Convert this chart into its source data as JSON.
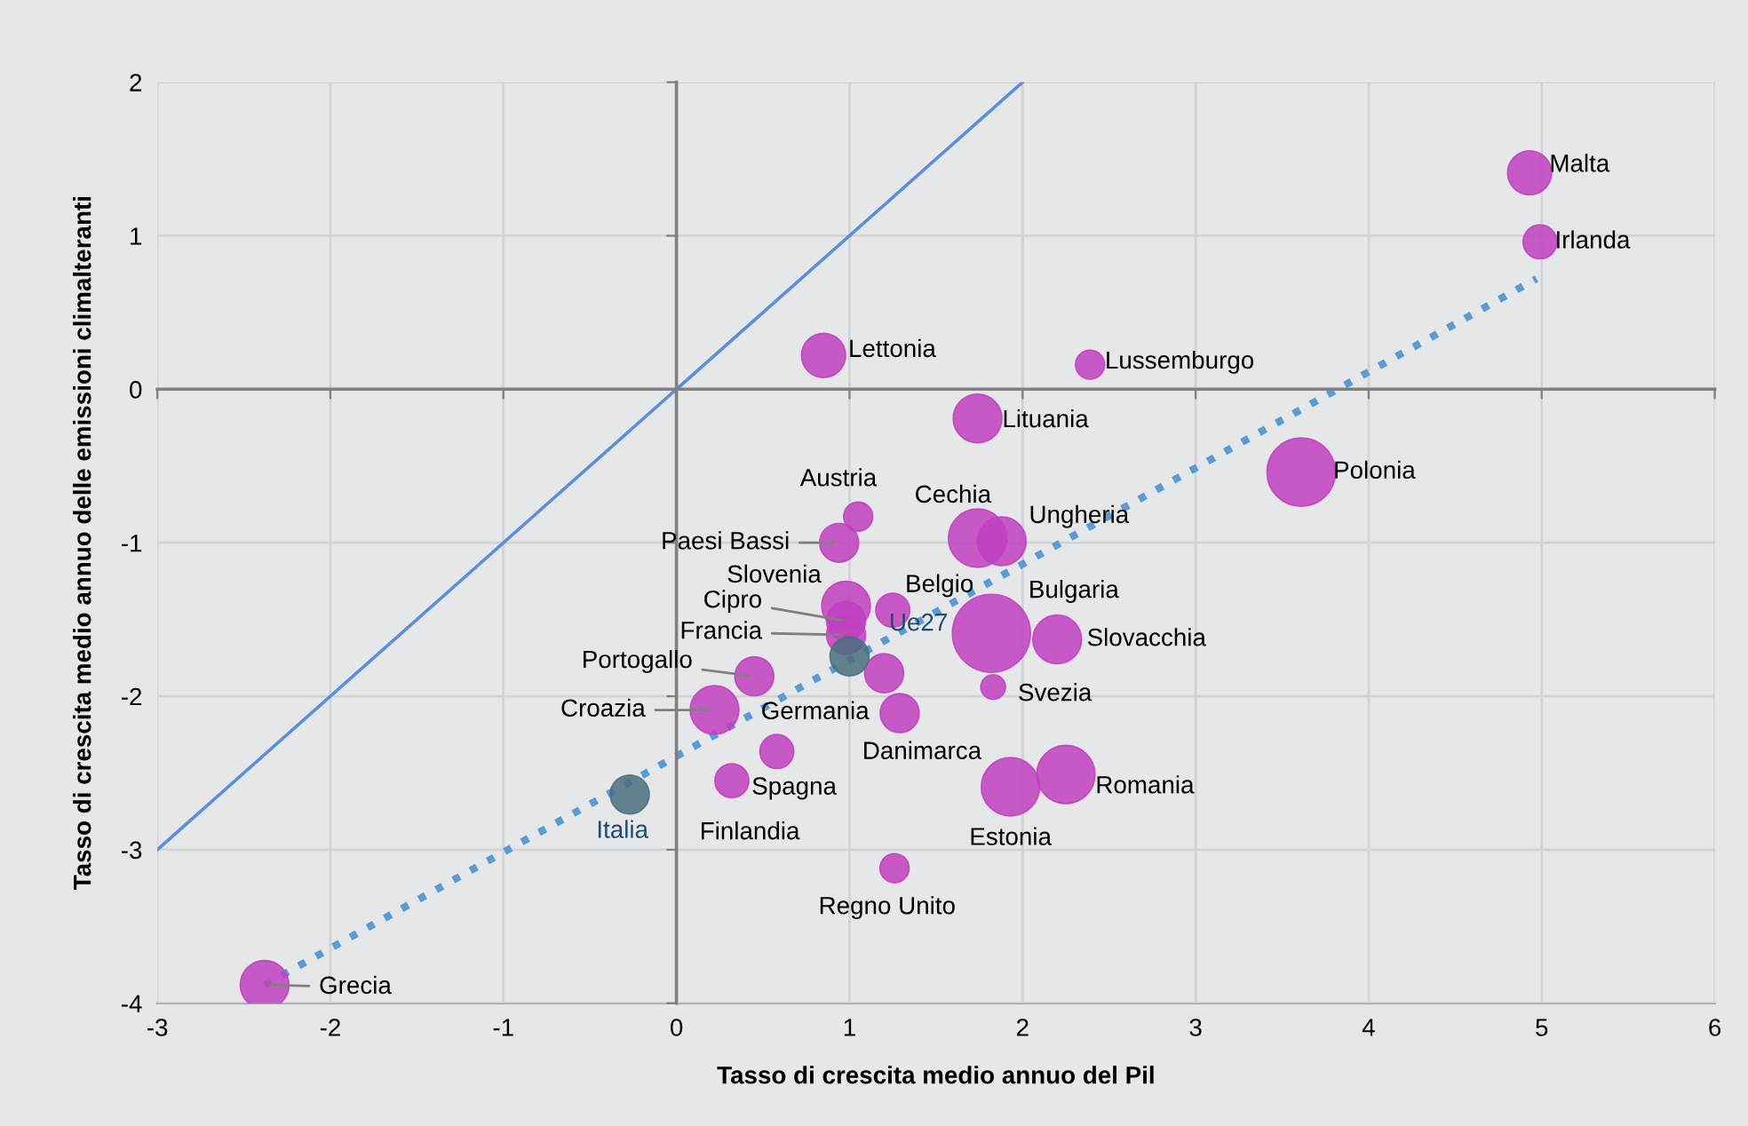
{
  "chart_data": {
    "type": "bubble",
    "xlabel": "Tasso di crescita medio annuo del Pil",
    "ylabel": "Tasso di crescita medio annuo delle emissioni climalteranti",
    "xlim": [
      -3,
      6
    ],
    "ylim": [
      -4,
      2
    ],
    "xticks": [
      -3,
      -2,
      -1,
      0,
      1,
      2,
      3,
      4,
      5,
      6
    ],
    "yticks": [
      -4,
      -3,
      -2,
      -1,
      0,
      1,
      2
    ],
    "grid": true,
    "legend": false,
    "series": [
      {
        "color": "#c040c0",
        "x": [
          4.93,
          4.99,
          0.85,
          2.39,
          1.74,
          3.61,
          1.05,
          0.94,
          1.74,
          1.88,
          0.98,
          0.98,
          0.98,
          1.25,
          1.82,
          2.2,
          0.45,
          0.22,
          1.2,
          1.29,
          1.83,
          0.32,
          0.58,
          1.93,
          2.25,
          1.26,
          -2.38
        ],
        "values": [
          1.41,
          0.96,
          0.22,
          0.16,
          -0.19,
          -0.54,
          -0.83,
          -1.0,
          -0.97,
          -0.99,
          -1.41,
          -1.51,
          -1.6,
          -1.44,
          -1.59,
          -1.63,
          -1.87,
          -2.09,
          -1.85,
          -2.11,
          -1.94,
          -2.55,
          -2.36,
          -2.59,
          -2.51,
          -3.12,
          -3.88
        ],
        "sizes": [
          0.32,
          0.19,
          0.32,
          0.14,
          0.39,
          0.77,
          0.14,
          0.25,
          0.56,
          0.39,
          0.39,
          0.25,
          0.25,
          0.19,
          1,
          0.39,
          0.25,
          0.39,
          0.25,
          0.25,
          0.1,
          0.19,
          0.19,
          0.56,
          0.56,
          0.14,
          0.39
        ]
      },
      {
        "color": "#4a6f7f",
        "x": [
          1.0,
          -0.27
        ],
        "values": [
          -1.74,
          -2.64
        ],
        "sizes": [
          0.25,
          0.25
        ]
      },
      {
        "type": "line",
        "color": "#5b8fd9",
        "line_style": "solid",
        "x": [
          -3,
          2
        ],
        "values": [
          -3,
          2
        ]
      },
      {
        "type": "line",
        "color": "#5b9bd5",
        "line_style": "dotted",
        "x": [
          -2.38,
          4.97
        ],
        "values": [
          -3.88,
          0.72
        ]
      }
    ],
    "annotations": [
      {
        "text": "Malta",
        "x": 4.93,
        "y": 1.41
      },
      {
        "text": "Irlanda",
        "x": 4.99,
        "y": 0.96
      },
      {
        "text": "Lettonia",
        "x": 0.85,
        "y": 0.22
      },
      {
        "text": "Lussemburgo",
        "x": 2.39,
        "y": 0.16
      },
      {
        "text": "Lituania",
        "x": 1.74,
        "y": -0.19
      },
      {
        "text": "Polonia",
        "x": 3.61,
        "y": -0.54
      },
      {
        "text": "Austria",
        "x": 1.05,
        "y": -0.83
      },
      {
        "text": "Paesi Bassi",
        "x": 0.94,
        "y": -1.0
      },
      {
        "text": "Cechia",
        "x": 1.74,
        "y": -0.97
      },
      {
        "text": "Ungheria",
        "x": 1.88,
        "y": -0.99
      },
      {
        "text": "Slovenia",
        "x": 0.98,
        "y": -1.41
      },
      {
        "text": "Cipro",
        "x": 0.98,
        "y": -1.51
      },
      {
        "text": "Francia",
        "x": 0.98,
        "y": -1.6
      },
      {
        "text": "Belgio",
        "x": 1.25,
        "y": -1.44
      },
      {
        "text": "Bulgaria",
        "x": 1.82,
        "y": -1.59
      },
      {
        "text": "Slovacchia",
        "x": 2.2,
        "y": -1.63
      },
      {
        "text": "Portogallo",
        "x": 0.45,
        "y": -1.87
      },
      {
        "text": "Croazia",
        "x": 0.22,
        "y": -2.09
      },
      {
        "text": "Germania",
        "x": 1.2,
        "y": -1.85
      },
      {
        "text": "Danimarca",
        "x": 1.29,
        "y": -2.11
      },
      {
        "text": "Svezia",
        "x": 1.83,
        "y": -1.94
      },
      {
        "text": "Spagna",
        "x": 0.32,
        "y": -2.55
      },
      {
        "text": "Finlandia",
        "x": 0.58,
        "y": -2.36
      },
      {
        "text": "Estonia",
        "x": 1.93,
        "y": -2.59
      },
      {
        "text": "Romania",
        "x": 2.25,
        "y": -2.51
      },
      {
        "text": "Regno Unito",
        "x": 1.26,
        "y": -3.12
      },
      {
        "text": "Grecia",
        "x": -2.38,
        "y": -3.88
      },
      {
        "text": "Ue27",
        "x": 1.0,
        "y": -1.74
      },
      {
        "text": "Italia",
        "x": -0.27,
        "y": -2.64
      }
    ]
  }
}
